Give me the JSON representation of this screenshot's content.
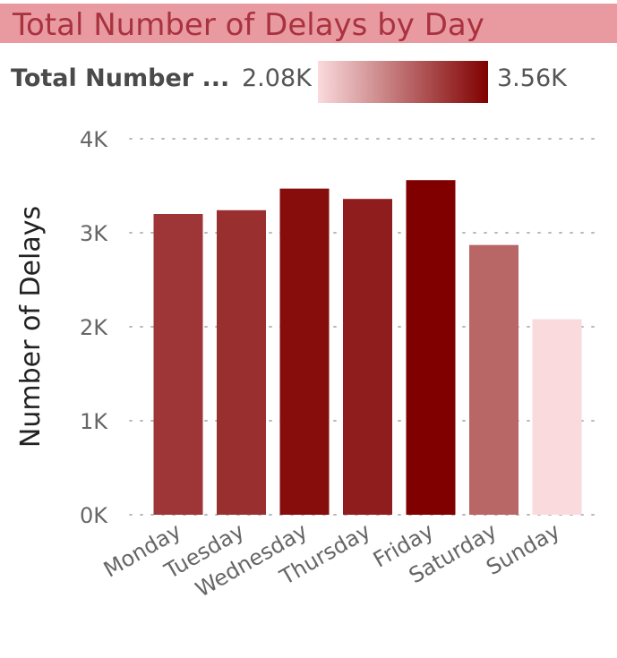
{
  "title": "Total Number of Delays by Day",
  "legend": {
    "label": "Total Number ...",
    "min_label": "2.08K",
    "max_label": "3.56K",
    "min_value": 2080,
    "max_value": 3560,
    "color_low": "#fadadd",
    "color_high": "#800000"
  },
  "chart_data": {
    "type": "bar",
    "categories": [
      "Monday",
      "Tuesday",
      "Wednesday",
      "Thursday",
      "Friday",
      "Saturday",
      "Sunday"
    ],
    "values": [
      3200,
      3240,
      3470,
      3360,
      3560,
      2870,
      2080
    ],
    "ylabel": "Number of Delays",
    "xlabel": "",
    "ylim": [
      0,
      4000
    ],
    "yticks": [
      0,
      1000,
      2000,
      3000,
      4000
    ],
    "ytick_labels": [
      "0K",
      "1K",
      "2K",
      "3K",
      "4K"
    ],
    "grid": true,
    "legend_position": "top"
  }
}
